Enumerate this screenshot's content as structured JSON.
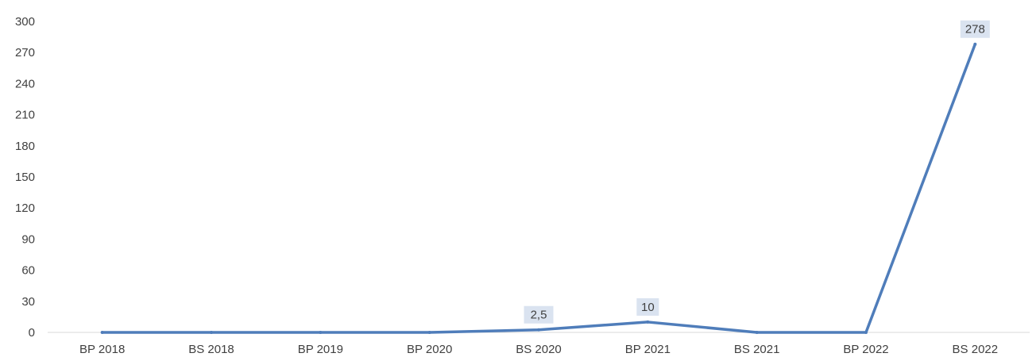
{
  "chart_data": {
    "type": "line",
    "title": "",
    "xlabel": "",
    "ylabel": "",
    "categories": [
      "BP 2018",
      "BS 2018",
      "BP 2019",
      "BP 2020",
      "BS 2020",
      "BP 2021",
      "BS 2021",
      "BP 2022",
      "BS 2022"
    ],
    "series": [
      {
        "values": [
          0,
          0,
          0,
          0,
          2.5,
          10,
          0,
          0,
          278
        ],
        "color": "#4f7dba"
      }
    ],
    "data_labels": [
      {
        "index": 4,
        "text": "2,5"
      },
      {
        "index": 5,
        "text": "10"
      },
      {
        "index": 8,
        "text": "278"
      }
    ],
    "ylim": [
      0,
      300
    ],
    "yticks": [
      0,
      30,
      60,
      90,
      120,
      150,
      180,
      210,
      240,
      270,
      300
    ],
    "grid": false,
    "legend": "none",
    "colors": {
      "line": "#4f7dba",
      "axis": "#d9d9d9",
      "label_bg": "#dae3f0",
      "text": "#404040"
    }
  }
}
